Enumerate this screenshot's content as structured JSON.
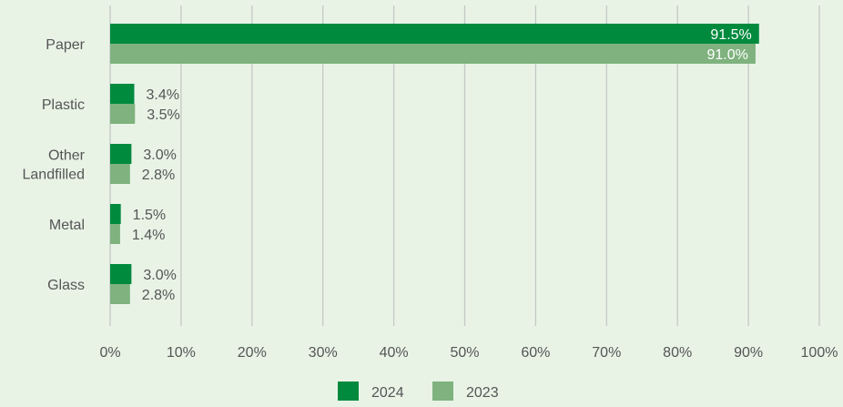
{
  "chart_data": {
    "type": "bar",
    "orientation": "horizontal",
    "categories": [
      "Paper",
      "Plastic",
      "Other\nLandfilled",
      "Metal",
      "Glass"
    ],
    "series": [
      {
        "name": "2024",
        "values": [
          91.5,
          3.4,
          3.0,
          1.5,
          3.0
        ],
        "labels": [
          "91.5%",
          "3.4%",
          "3.0%",
          "1.5%",
          "3.0%"
        ],
        "color": "#008a3e"
      },
      {
        "name": "2023",
        "values": [
          91.0,
          3.5,
          2.8,
          1.4,
          2.8
        ],
        "labels": [
          "91.0%",
          "3.5%",
          "2.8%",
          "1.4%",
          "2.8%"
        ],
        "color": "#7fb27e"
      }
    ],
    "xlim": [
      0,
      100
    ],
    "xticks": [
      0,
      10,
      20,
      30,
      40,
      50,
      60,
      70,
      80,
      90,
      100
    ],
    "xtick_labels": [
      "0%",
      "10%",
      "20%",
      "30%",
      "40%",
      "50%",
      "60%",
      "70%",
      "80%",
      "90%",
      "100%"
    ],
    "grid": true,
    "legend_position": "bottom",
    "background": "#e8f3e6"
  }
}
